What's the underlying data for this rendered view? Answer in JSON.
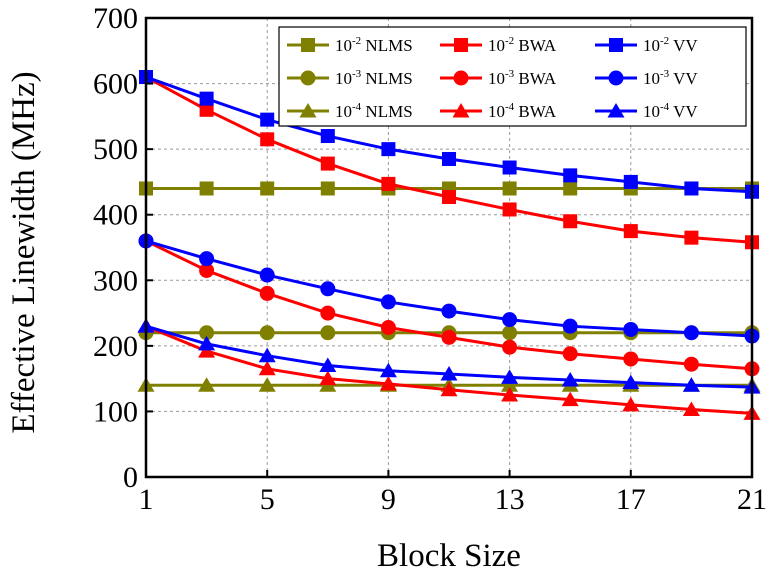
{
  "chart_data": {
    "type": "line",
    "xlabel": "Block Size",
    "ylabel": "Effective Linewidth (MHz)",
    "xlim": [
      1,
      21
    ],
    "ylim": [
      0,
      700
    ],
    "xticks": [
      1,
      5,
      9,
      13,
      17,
      21
    ],
    "xtick_labels": [
      "1",
      "5",
      "9",
      "13",
      "17",
      "21"
    ],
    "yticks": [
      0,
      100,
      200,
      300,
      400,
      500,
      600,
      700
    ],
    "ytick_labels": [
      "0",
      "100",
      "200",
      "300",
      "400",
      "500",
      "600",
      "700"
    ],
    "grid": true,
    "legend_position": "top-right",
    "colors": {
      "NLMS": "#808000",
      "BWA": "#ff0000",
      "VV": "#0000ff"
    },
    "series": [
      {
        "name": "10-2 NLMS",
        "legend_base": "10",
        "legend_exp": "-2",
        "legend_tail": " NLMS",
        "color": "#808000",
        "marker": "square",
        "x": [
          1,
          3,
          5,
          7,
          9,
          11,
          13,
          15,
          17,
          19,
          21
        ],
        "y": [
          440,
          440,
          440,
          440,
          440,
          440,
          440,
          440,
          440,
          440,
          440
        ]
      },
      {
        "name": "10-3 NLMS",
        "legend_base": "10",
        "legend_exp": "-3",
        "legend_tail": " NLMS",
        "color": "#808000",
        "marker": "circle",
        "x": [
          1,
          3,
          5,
          7,
          9,
          11,
          13,
          15,
          17,
          19,
          21
        ],
        "y": [
          220,
          220,
          220,
          220,
          220,
          220,
          220,
          220,
          220,
          220,
          220
        ]
      },
      {
        "name": "10-4 NLMS",
        "legend_base": "10",
        "legend_exp": "-4",
        "legend_tail": " NLMS",
        "color": "#808000",
        "marker": "triangle",
        "x": [
          1,
          3,
          5,
          7,
          9,
          11,
          13,
          15,
          17,
          19,
          21
        ],
        "y": [
          140,
          140,
          140,
          140,
          140,
          140,
          140,
          140,
          140,
          140,
          140
        ]
      },
      {
        "name": "10-2 BWA",
        "legend_base": "10",
        "legend_exp": "-2",
        "legend_tail": " BWA",
        "color": "#ff0000",
        "marker": "square",
        "x": [
          1,
          3,
          5,
          7,
          9,
          11,
          13,
          15,
          17,
          19,
          21
        ],
        "y": [
          610,
          560,
          515,
          478,
          447,
          427,
          408,
          390,
          375,
          365,
          358
        ]
      },
      {
        "name": "10-3 BWA",
        "legend_base": "10",
        "legend_exp": "-3",
        "legend_tail": " BWA",
        "color": "#ff0000",
        "marker": "circle",
        "x": [
          1,
          3,
          5,
          7,
          9,
          11,
          13,
          15,
          17,
          19,
          21
        ],
        "y": [
          360,
          315,
          280,
          250,
          228,
          213,
          198,
          188,
          180,
          172,
          165
        ]
      },
      {
        "name": "10-4 BWA",
        "legend_base": "10",
        "legend_exp": "-4",
        "legend_tail": " BWA",
        "color": "#ff0000",
        "marker": "triangle",
        "x": [
          1,
          3,
          5,
          7,
          9,
          11,
          13,
          15,
          17,
          19,
          21
        ],
        "y": [
          230,
          192,
          165,
          150,
          142,
          133,
          125,
          118,
          110,
          103,
          97
        ]
      },
      {
        "name": "10-2 VV",
        "legend_base": "10",
        "legend_exp": "-2",
        "legend_tail": " VV",
        "color": "#0000ff",
        "marker": "square",
        "x": [
          1,
          3,
          5,
          7,
          9,
          11,
          13,
          15,
          17,
          19,
          21
        ],
        "y": [
          610,
          577,
          545,
          520,
          500,
          485,
          472,
          460,
          450,
          440,
          435
        ]
      },
      {
        "name": "10-3 VV",
        "legend_base": "10",
        "legend_exp": "-3",
        "legend_tail": " VV",
        "color": "#0000ff",
        "marker": "circle",
        "x": [
          1,
          3,
          5,
          7,
          9,
          11,
          13,
          15,
          17,
          19,
          21
        ],
        "y": [
          360,
          333,
          308,
          287,
          267,
          253,
          240,
          230,
          225,
          220,
          215
        ]
      },
      {
        "name": "10-4 VV",
        "legend_base": "10",
        "legend_exp": "-4",
        "legend_tail": " VV",
        "color": "#0000ff",
        "marker": "triangle",
        "x": [
          1,
          3,
          5,
          7,
          9,
          11,
          13,
          15,
          17,
          19,
          21
        ],
        "y": [
          230,
          203,
          185,
          170,
          162,
          157,
          152,
          148,
          144,
          140,
          137
        ]
      }
    ]
  }
}
